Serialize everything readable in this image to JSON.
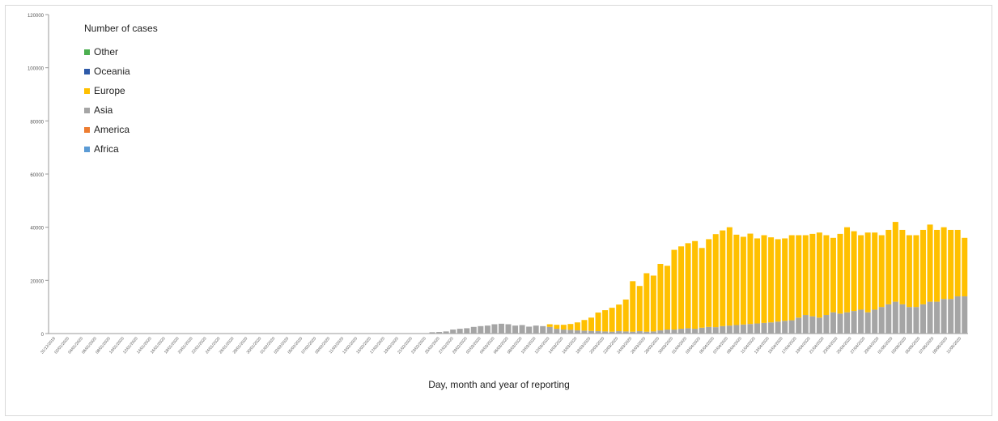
{
  "chart_data": {
    "type": "bar",
    "stacked": true,
    "title": "",
    "xlabel": "Day, month and year of reporting",
    "ylabel": "",
    "ylim": [
      0,
      120000
    ],
    "yticks": [
      "0",
      "20000",
      "40000",
      "60000",
      "80000",
      "100000",
      "120000"
    ],
    "legend_title": "Number of cases",
    "legend_position": "top-left",
    "grid": false,
    "xtick_labels": [
      "31/12/2019",
      "02/01/2020",
      "04/01/2020",
      "06/01/2020",
      "08/01/2020",
      "10/01/2020",
      "12/01/2020",
      "14/01/2020",
      "16/01/2020",
      "18/01/2020",
      "20/01/2020",
      "22/01/2020",
      "24/01/2020",
      "26/01/2020",
      "28/01/2020",
      "30/01/2020",
      "01/02/2020",
      "03/02/2020",
      "05/02/2020",
      "07/02/2020",
      "09/02/2020",
      "11/02/2020",
      "13/02/2020",
      "15/02/2020",
      "17/02/2020",
      "19/02/2020",
      "21/02/2020",
      "23/02/2020",
      "25/02/2020",
      "27/02/2020",
      "29/02/2020",
      "02/03/2020",
      "04/03/2020",
      "06/03/2020",
      "08/03/2020",
      "10/03/2020",
      "12/03/2020",
      "14/03/2020",
      "16/03/2020",
      "18/03/2020",
      "20/03/2020",
      "22/03/2020",
      "24/03/2020",
      "26/03/2020",
      "28/03/2020",
      "30/03/2020",
      "01/04/2020",
      "03/04/2020",
      "05/04/2020",
      "07/04/2020",
      "09/04/2020",
      "11/04/2020",
      "13/04/2020",
      "15/04/2020",
      "17/04/2020",
      "19/04/2020",
      "21/04/2020",
      "23/04/2020",
      "25/04/2020",
      "27/04/2020",
      "29/04/2020",
      "01/05/2020",
      "03/05/2020",
      "05/05/2020",
      "07/05/2020",
      "09/05/2020",
      "11/05/2020"
    ],
    "series": [
      {
        "name": "Other",
        "color": "#4caf50",
        "values": [
          0,
          0,
          0,
          0,
          0,
          0,
          0,
          0,
          0,
          0,
          0,
          0,
          0,
          0,
          0,
          0,
          0,
          0,
          0,
          0,
          0,
          0,
          0,
          0,
          0,
          0,
          0,
          0,
          0,
          0,
          0,
          0,
          0,
          0,
          0,
          0,
          0,
          0,
          0,
          0,
          0,
          0,
          0,
          0,
          0,
          0,
          0,
          0,
          0,
          0,
          0,
          0,
          0,
          0,
          0,
          0,
          0,
          0,
          0,
          0,
          0,
          0,
          0,
          0,
          0,
          0,
          0,
          0,
          0,
          0,
          0,
          0,
          0,
          0,
          0,
          0,
          0,
          0,
          0,
          0,
          0,
          0,
          0,
          0,
          0,
          0,
          0,
          0,
          0,
          0,
          0,
          0,
          0,
          0,
          0,
          0,
          0,
          0,
          0,
          0,
          0,
          0,
          0,
          0,
          0,
          0,
          0,
          0,
          0,
          0,
          0,
          0,
          0,
          0,
          0,
          0,
          0,
          0,
          0,
          0,
          0,
          0,
          0,
          0,
          0,
          0,
          0,
          0,
          0,
          0,
          0,
          0,
          0
        ]
      },
      {
        "name": "Oceania",
        "color": "#2e5aa8",
        "values": [
          0,
          0,
          0,
          0,
          0,
          0,
          0,
          0,
          0,
          0,
          0,
          0,
          0,
          0,
          0,
          0,
          0,
          0,
          0,
          0,
          0,
          0,
          0,
          0,
          0,
          0,
          0,
          0,
          0,
          0,
          0,
          0,
          0,
          0,
          0,
          0,
          0,
          0,
          0,
          0,
          0,
          0,
          0,
          0,
          0,
          0,
          0,
          0,
          0,
          0,
          0,
          0,
          0,
          0,
          0,
          0,
          0,
          0,
          0,
          0,
          0,
          0,
          0,
          0,
          0,
          0,
          0,
          0,
          0,
          0,
          0,
          0,
          0,
          0,
          0,
          0,
          0,
          0,
          0,
          0,
          0,
          0,
          0,
          0,
          0,
          0,
          0,
          0,
          0,
          0,
          0,
          0,
          0,
          0,
          0,
          0,
          0,
          0,
          0,
          0,
          0,
          0,
          0,
          0,
          0,
          0,
          0,
          0,
          0,
          0,
          0,
          0,
          0,
          0,
          0,
          0,
          0,
          0,
          0,
          0,
          0,
          0,
          0,
          0,
          0,
          0,
          0,
          0,
          0,
          0,
          0,
          0,
          0
        ]
      },
      {
        "name": "Europe",
        "color": "#ffc000",
        "values": [
          0,
          0,
          0,
          0,
          0,
          0,
          0,
          0,
          0,
          0,
          0,
          0,
          0,
          0,
          0,
          0,
          0,
          0,
          0,
          0,
          0,
          0,
          0,
          0,
          0,
          0,
          0,
          0,
          0,
          0,
          0,
          0,
          0,
          0,
          0,
          0,
          0,
          0,
          0,
          0,
          0,
          0,
          0,
          0,
          0,
          0,
          0,
          0,
          0,
          0,
          0,
          0,
          0,
          0,
          0,
          0,
          0,
          0,
          0,
          0,
          0,
          0,
          0,
          0,
          0,
          0,
          0,
          0,
          0,
          0,
          0,
          0,
          1000,
          1500,
          1800,
          2200,
          3000,
          4000,
          5000,
          7000,
          8000,
          9000,
          10000,
          12000,
          19000,
          17000,
          22000,
          21000,
          25000,
          24000,
          30000,
          31000,
          32000,
          33000,
          30000,
          33000,
          35000,
          36000,
          37000,
          34000,
          33000,
          34000,
          32000,
          33000,
          32000,
          31000,
          31000,
          32000,
          31000,
          30000,
          31000,
          32000,
          30000,
          28000,
          30000,
          32000,
          30000,
          28000,
          30000,
          29000,
          27000,
          28000,
          30000,
          28000,
          27000,
          27000,
          28000,
          29000,
          27000,
          27000,
          26000,
          25000,
          22000
        ]
      },
      {
        "name": "Asia",
        "color": "#a5a5a5",
        "values": [
          0,
          0,
          0,
          0,
          0,
          0,
          0,
          0,
          0,
          0,
          0,
          0,
          0,
          0,
          0,
          0,
          0,
          0,
          0,
          0,
          0,
          0,
          0,
          0,
          0,
          0,
          0,
          0,
          0,
          0,
          0,
          0,
          0,
          0,
          0,
          0,
          0,
          0,
          0,
          0,
          0,
          0,
          0,
          0,
          0,
          0,
          0,
          0,
          0,
          0,
          0,
          0,
          0,
          0,
          0,
          500,
          600,
          800,
          1500,
          1800,
          2000,
          2500,
          2800,
          3000,
          3500,
          3700,
          3500,
          3000,
          3200,
          2600,
          3000,
          2800,
          2500,
          1800,
          1500,
          1400,
          1200,
          1100,
          1000,
          900,
          800,
          700,
          900,
          800,
          700,
          900,
          700,
          800,
          1200,
          1500,
          1500,
          1800,
          2000,
          1800,
          2200,
          2500,
          2400,
          2800,
          3000,
          3200,
          3400,
          3600,
          3800,
          4000,
          4200,
          4500,
          4800,
          5000,
          6000,
          7000,
          6500,
          6000,
          7000,
          8000,
          7500,
          8000,
          8500,
          9000,
          8000,
          9000,
          10000,
          11000,
          12000,
          11000,
          10000,
          10000,
          11000,
          12000,
          12000,
          13000,
          13000,
          14000,
          14000,
          15000,
          15000,
          15000,
          16000
        ]
      },
      {
        "name": "America",
        "color": "#ed7d31",
        "values": [
          0,
          0,
          0,
          0,
          0,
          0,
          0,
          0,
          0,
          0,
          0,
          0,
          0,
          0,
          0,
          0,
          0,
          0,
          0,
          0,
          0,
          0,
          0,
          0,
          0,
          0,
          0,
          0,
          0,
          0,
          0,
          0,
          0,
          0,
          0,
          0,
          0,
          0,
          0,
          0,
          0,
          0,
          0,
          0,
          0,
          0,
          0,
          0,
          0,
          0,
          0,
          0,
          0,
          0,
          0,
          0,
          0,
          0,
          0,
          0,
          0,
          0,
          0,
          0,
          0,
          0,
          0,
          0,
          0,
          0,
          0,
          0,
          0,
          0,
          0,
          0,
          0,
          0,
          0,
          0,
          0,
          0,
          0,
          0,
          0,
          0,
          0,
          0,
          0,
          0,
          0,
          0,
          0,
          0,
          0,
          0,
          0,
          0,
          0,
          0,
          0,
          0,
          0,
          0,
          0,
          0,
          0,
          0,
          0,
          0,
          0,
          0,
          0,
          0,
          0,
          0,
          0,
          0,
          0,
          0,
          0,
          0,
          0,
          0,
          0,
          0,
          0,
          0,
          0,
          0,
          0,
          0,
          0
        ]
      },
      {
        "name": "Africa",
        "color": "#5b9bd5",
        "values": [
          0,
          0,
          0,
          0,
          0,
          0,
          0,
          0,
          0,
          0,
          0,
          0,
          0,
          0,
          0,
          0,
          0,
          0,
          0,
          0,
          0,
          0,
          0,
          0,
          0,
          0,
          0,
          0,
          0,
          0,
          0,
          0,
          0,
          0,
          0,
          0,
          0,
          0,
          0,
          0,
          0,
          0,
          0,
          0,
          0,
          0,
          0,
          0,
          0,
          0,
          0,
          0,
          0,
          0,
          0,
          0,
          0,
          0,
          0,
          0,
          0,
          0,
          0,
          0,
          0,
          0,
          0,
          0,
          0,
          0,
          0,
          0,
          0,
          0,
          0,
          0,
          0,
          0,
          0,
          0,
          0,
          0,
          0,
          0,
          0,
          0,
          0,
          0,
          0,
          0,
          0,
          0,
          0,
          0,
          0,
          0,
          0,
          0,
          0,
          0,
          0,
          0,
          0,
          0,
          0,
          0,
          0,
          0,
          0,
          0,
          0,
          0,
          0,
          0,
          0,
          0,
          0,
          0,
          0,
          0,
          0,
          0,
          0,
          0,
          0,
          0,
          0,
          0,
          0,
          0,
          0,
          0,
          0
        ]
      }
    ]
  }
}
